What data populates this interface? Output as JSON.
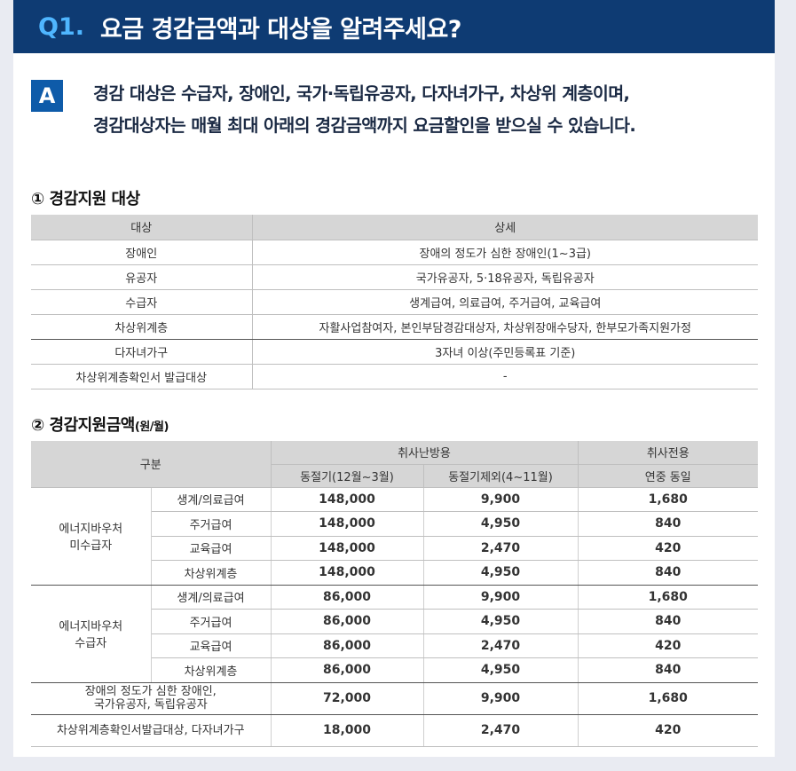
{
  "question": {
    "number": "Q1.",
    "text": "요금 경감금액과 대상을 알려주세요?"
  },
  "answer": {
    "badge": "A",
    "line1": "경감 대상은 수급자, 장애인, 국가·독립유공자, 다자녀가구, 차상위 계층이며,",
    "line2": "경감대상자는 매월 최대 아래의 경감금액까지 요금할인을 받으실 수 있습니다."
  },
  "section1": {
    "title": "① 경감지원 대상",
    "headers": [
      "대상",
      "상세"
    ],
    "rows": [
      [
        "장애인",
        "장애의 정도가 심한 장애인(1~3급)"
      ],
      [
        "유공자",
        "국가유공자, 5·18유공자, 독립유공자"
      ],
      [
        "수급자",
        "생계급여, 의료급여, 주거급여, 교육급여"
      ],
      [
        "차상위계층",
        "자활사업참여자, 본인부담경감대상자, 차상위장애수당자, 한부모가족지원가정"
      ],
      [
        "다자녀가구",
        "3자녀 이상(주민등록표 기준)"
      ],
      [
        "차상위계층확인서 발급대상",
        "-"
      ]
    ]
  },
  "section2": {
    "title": "② 경감지원금액",
    "unit": "(원/월)",
    "head": {
      "division": "구분",
      "heating": "취사난방용",
      "cooking": "취사전용",
      "winter": "동절기(12월~3월)",
      "nonwinter": "동절기제외(4~11월)",
      "yearround": "연중 동일"
    },
    "group1": {
      "name_l1": "에너지바우처",
      "name_l2": "미수급자",
      "rows": [
        [
          "생계/의료급여",
          "148,000",
          "9,900",
          "1,680"
        ],
        [
          "주거급여",
          "148,000",
          "4,950",
          "840"
        ],
        [
          "교육급여",
          "148,000",
          "2,470",
          "420"
        ],
        [
          "차상위계층",
          "148,000",
          "4,950",
          "840"
        ]
      ]
    },
    "group2": {
      "name_l1": "에너지바우처",
      "name_l2": "수급자",
      "rows": [
        [
          "생계/의료급여",
          "86,000",
          "9,900",
          "1,680"
        ],
        [
          "주거급여",
          "86,000",
          "4,950",
          "840"
        ],
        [
          "교육급여",
          "86,000",
          "2,470",
          "420"
        ],
        [
          "차상위계층",
          "86,000",
          "4,950",
          "840"
        ]
      ]
    },
    "row_disabled": {
      "l1": "장애의 정도가 심한 장애인,",
      "l2": "국가유공자, 독립유공자",
      "values": [
        "72,000",
        "9,900",
        "1,680"
      ]
    },
    "row_lowincome": {
      "label": "차상위계층확인서발급대상, 다자녀가구",
      "values": [
        "18,000",
        "2,470",
        "420"
      ]
    }
  }
}
